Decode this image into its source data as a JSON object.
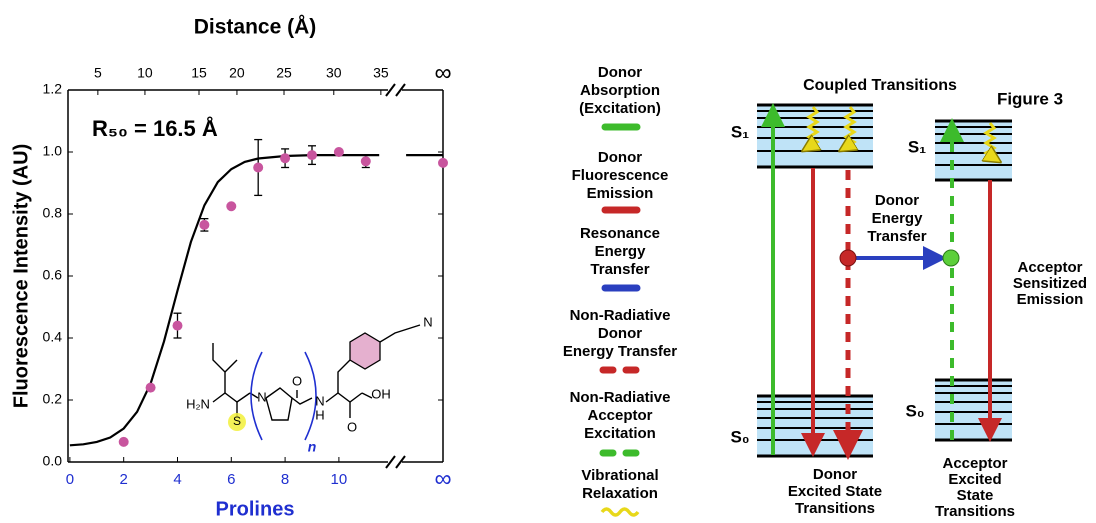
{
  "chart_data": {
    "type": "scatter",
    "title": "Distance (Å)",
    "xlabel": "Prolines",
    "ylabel": "Fluorescence Intensity (AU)",
    "annotation": "R₅₀ = 16.5 Å",
    "xlim": [
      -0.07,
      13.87
    ],
    "ylim": [
      0,
      1.2
    ],
    "xticks": [
      0,
      2,
      4,
      6,
      8,
      10,
      {
        "value": 13.87,
        "label": "∞"
      }
    ],
    "x2ticks": [
      {
        "value": 1.04,
        "label": "5"
      },
      {
        "value": 2.79,
        "label": "10"
      },
      {
        "value": 4.8,
        "label": "15"
      },
      {
        "value": 6.21,
        "label": "20"
      },
      {
        "value": 7.96,
        "label": "25"
      },
      {
        "value": 9.81,
        "label": "30"
      },
      {
        "value": 11.56,
        "label": "35"
      },
      {
        "value": 13.87,
        "label": "∞"
      }
    ],
    "yticks": [
      {
        "value": 0,
        "label": "0.0"
      },
      0.2,
      0.4,
      0.6,
      0.8,
      {
        "value": 1,
        "label": "1.0"
      },
      1.2
    ],
    "series": [
      {
        "color": "#c8559e",
        "x": [
          2,
          3,
          4,
          5,
          6,
          7,
          8,
          9,
          10,
          11,
          13.87
        ],
        "values": [
          0.065,
          0.24,
          0.44,
          0.765,
          0.825,
          0.95,
          0.98,
          0.99,
          1.0,
          0.97,
          0.965
        ],
        "errors": [
          null,
          null,
          0.04,
          0.02,
          null,
          0.09,
          0.03,
          0.03,
          null,
          0.02,
          null
        ]
      },
      {
        "color": "#000000",
        "x": [
          0,
          0.5,
          1,
          1.5,
          2,
          2.5,
          3,
          3.5,
          4,
          4.5,
          5,
          5.5,
          6,
          6.5,
          7,
          8,
          9,
          10,
          11.5,
          12,
          12.5,
          13.87
        ],
        "values": [
          0.054,
          0.057,
          0.065,
          0.079,
          0.108,
          0.162,
          0.253,
          0.389,
          0.553,
          0.71,
          0.828,
          0.903,
          0.945,
          0.968,
          0.979,
          0.987,
          0.99,
          0.99,
          0.99,
          null,
          0.99,
          0.99
        ]
      }
    ]
  },
  "molecule": {
    "amine": "H₂N",
    "thio": "S",
    "proline_n": "N",
    "carbonyl": "O",
    "amide": "N",
    "amide_h": "H",
    "acid_oh": "OH",
    "acid_o": "O",
    "nitrile": "N",
    "repeat": "n"
  },
  "diagram": {
    "figure_label": "Figure 3",
    "heading": "Coupled Transitions",
    "donor_s1": "S₁",
    "donor_s0": "S₀",
    "acceptor_s1": "S₁",
    "acceptor_s0": "S₀",
    "energy_transfer": [
      "Donor",
      "Energy",
      "Transfer"
    ],
    "acceptor_emission": [
      "Acceptor",
      "Sensitized",
      "Emission"
    ],
    "donor_caption": [
      "Donor",
      "Excited State",
      "Transitions"
    ],
    "acceptor_caption": [
      "Acceptor",
      "Excited",
      "State",
      "Transitions"
    ],
    "legend": [
      [
        "Donor",
        "Absorption",
        "(Excitation)"
      ],
      [
        "Donor",
        "Fluorescence",
        "Emission"
      ],
      [
        "Resonance",
        "Energy",
        "Transfer"
      ],
      [
        "Non-Radiative",
        "Donor",
        "Energy Transfer"
      ],
      [
        "Non-Radiative",
        "Acceptor",
        "Excitation"
      ],
      [
        "Vibrational",
        "Relaxation"
      ]
    ]
  }
}
